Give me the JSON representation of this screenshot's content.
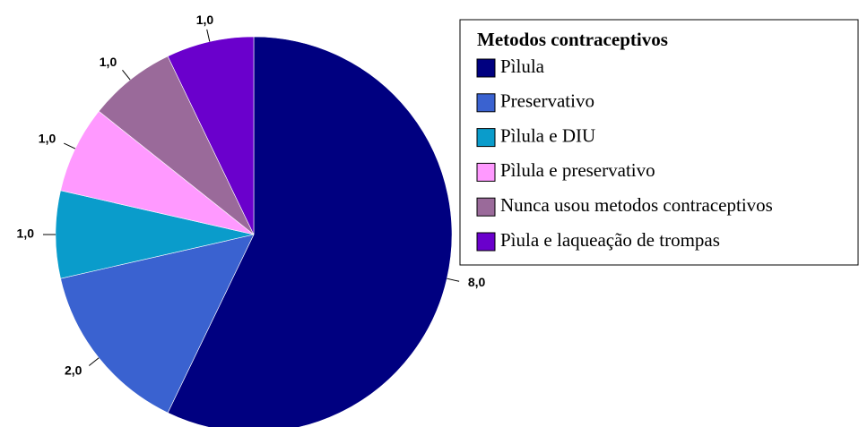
{
  "chart_data": {
    "type": "pie",
    "legend_title": "Metodos contraceptivos",
    "categories": [
      "Pìlula",
      "Preservativo",
      "Pìlula e DIU",
      "Pìlula e preservativo",
      "Nunca usou metodos contraceptivos",
      "Pìula e laqueação de trompas"
    ],
    "values": [
      8,
      2,
      1,
      1,
      1,
      1
    ],
    "value_labels": [
      "8,0",
      "2,0",
      "1,0",
      "1,0",
      "1,0",
      "1,0"
    ],
    "colors": [
      "#000080",
      "#3a62d0",
      "#0a9ccb",
      "#ff99ff",
      "#9a6a9a",
      "#6a00cc"
    ],
    "legend": "right"
  }
}
